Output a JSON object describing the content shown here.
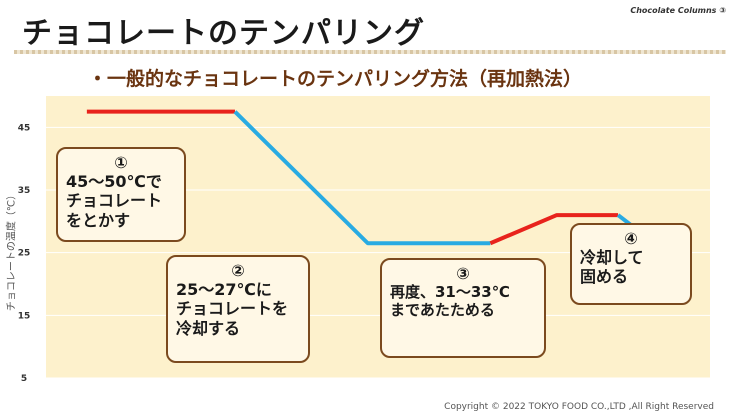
{
  "header": {
    "title": "チョコレートのテンパリング",
    "brand": "Chocolate Columns ③",
    "subtitle": "・一般的なチョコレートのテンパリング方法（再加熱法）"
  },
  "footer": {
    "copyright": "Copyright © 2022 TOKYO FOOD CO.,LTD ,All Right Reserved"
  },
  "colors": {
    "plot_background": "#fdf1cc",
    "warming": "#e8231c",
    "cooling": "#29abe2",
    "box_border": "#7b4a1e"
  },
  "steps": [
    {
      "number": "①",
      "text": "45～50℃で\nチョコレート\nをとかす"
    },
    {
      "number": "②",
      "text": "25～27℃に\nチョコレートを\n冷却する"
    },
    {
      "number": "③",
      "text": "再度、31～33℃\nまであたためる"
    },
    {
      "number": "④",
      "text": "冷却して\n固める"
    }
  ],
  "chart_data": {
    "type": "line",
    "title": "",
    "xlabel": "",
    "ylabel": "チョコレートの温度（℃）",
    "ylim": [
      5,
      50
    ],
    "yticks": [
      5,
      15,
      25,
      35,
      45
    ],
    "xlim": [
      0,
      13
    ],
    "grid": true,
    "legend": "none",
    "series": [
      {
        "color": "#e8231c",
        "points": [
          [
            0.8,
            47.5
          ],
          [
            3.7,
            47.5
          ]
        ]
      },
      {
        "color": "#29abe2",
        "points": [
          [
            3.7,
            47.5
          ],
          [
            6.3,
            26.5
          ],
          [
            8.7,
            26.5
          ]
        ]
      },
      {
        "color": "#e8231c",
        "points": [
          [
            8.7,
            26.5
          ],
          [
            10.0,
            31
          ],
          [
            11.2,
            31
          ]
        ]
      },
      {
        "color": "#29abe2",
        "points": [
          [
            11.2,
            31
          ],
          [
            15.0,
            7
          ]
        ]
      }
    ]
  }
}
